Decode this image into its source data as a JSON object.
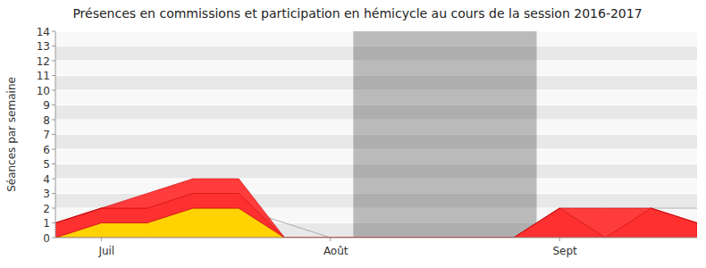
{
  "chart_data": {
    "type": "area",
    "title": "Présences en commissions et participation en hémicycle au cours de la session 2016-2017",
    "y_label": "Séances par semaine",
    "categories": [
      null,
      "Juil",
      null,
      null,
      null,
      null,
      "Août",
      null,
      null,
      null,
      null,
      "Sept",
      null,
      null,
      null
    ],
    "stacked": true,
    "series": [
      {
        "color": "#ffd200",
        "values": [
          0,
          1,
          1,
          2,
          2,
          0,
          0,
          0,
          0,
          0,
          0,
          0,
          0,
          0,
          0
        ]
      },
      {
        "color": "#ff3030",
        "values": [
          1,
          1,
          1,
          1,
          1,
          0,
          0,
          0,
          0,
          0,
          0,
          2,
          0,
          2,
          1
        ]
      },
      {
        "color": "#ff3c3c",
        "values": [
          0,
          0,
          1,
          1,
          1,
          0,
          0,
          0,
          0,
          0,
          0,
          0,
          2,
          0,
          0
        ]
      },
      {
        "type": "line",
        "stacked": false,
        "color": "#aaaaaa",
        "values": [
          1,
          2,
          2,
          2,
          2,
          1,
          0,
          0,
          0,
          0,
          0,
          2,
          2,
          2,
          2
        ]
      }
    ],
    "band": [
      6.5,
      10.5
    ],
    "ylim": [
      0,
      14
    ],
    "yticks": [
      0,
      1,
      2,
      3,
      4,
      5,
      6,
      7,
      8,
      9,
      10,
      11,
      12,
      13,
      14
    ],
    "grid": true
  }
}
